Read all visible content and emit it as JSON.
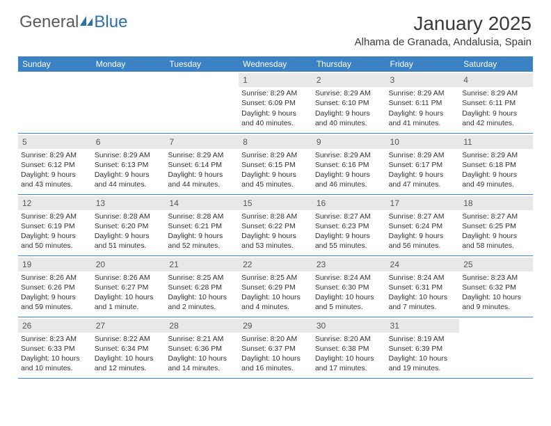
{
  "logo": {
    "word1": "General",
    "word2": "Blue",
    "icon_color": "#2b6fb0"
  },
  "title": "January 2025",
  "location": "Alhama de Granada, Andalusia, Spain",
  "day_headers": [
    "Sunday",
    "Monday",
    "Tuesday",
    "Wednesday",
    "Thursday",
    "Friday",
    "Saturday"
  ],
  "colors": {
    "header_bg": "#3b82c4",
    "header_text": "#ffffff",
    "daynum_bg": "#e8e8e8",
    "border": "#3b82c4",
    "text": "#333333",
    "title_text": "#3a3a3a"
  },
  "weeks": [
    [
      {
        "n": "",
        "sunrise": "",
        "sunset": "",
        "daylight": ""
      },
      {
        "n": "",
        "sunrise": "",
        "sunset": "",
        "daylight": ""
      },
      {
        "n": "",
        "sunrise": "",
        "sunset": "",
        "daylight": ""
      },
      {
        "n": "1",
        "sunrise": "Sunrise: 8:29 AM",
        "sunset": "Sunset: 6:09 PM",
        "daylight": "Daylight: 9 hours and 40 minutes."
      },
      {
        "n": "2",
        "sunrise": "Sunrise: 8:29 AM",
        "sunset": "Sunset: 6:10 PM",
        "daylight": "Daylight: 9 hours and 40 minutes."
      },
      {
        "n": "3",
        "sunrise": "Sunrise: 8:29 AM",
        "sunset": "Sunset: 6:11 PM",
        "daylight": "Daylight: 9 hours and 41 minutes."
      },
      {
        "n": "4",
        "sunrise": "Sunrise: 8:29 AM",
        "sunset": "Sunset: 6:11 PM",
        "daylight": "Daylight: 9 hours and 42 minutes."
      }
    ],
    [
      {
        "n": "5",
        "sunrise": "Sunrise: 8:29 AM",
        "sunset": "Sunset: 6:12 PM",
        "daylight": "Daylight: 9 hours and 43 minutes."
      },
      {
        "n": "6",
        "sunrise": "Sunrise: 8:29 AM",
        "sunset": "Sunset: 6:13 PM",
        "daylight": "Daylight: 9 hours and 44 minutes."
      },
      {
        "n": "7",
        "sunrise": "Sunrise: 8:29 AM",
        "sunset": "Sunset: 6:14 PM",
        "daylight": "Daylight: 9 hours and 44 minutes."
      },
      {
        "n": "8",
        "sunrise": "Sunrise: 8:29 AM",
        "sunset": "Sunset: 6:15 PM",
        "daylight": "Daylight: 9 hours and 45 minutes."
      },
      {
        "n": "9",
        "sunrise": "Sunrise: 8:29 AM",
        "sunset": "Sunset: 6:16 PM",
        "daylight": "Daylight: 9 hours and 46 minutes."
      },
      {
        "n": "10",
        "sunrise": "Sunrise: 8:29 AM",
        "sunset": "Sunset: 6:17 PM",
        "daylight": "Daylight: 9 hours and 47 minutes."
      },
      {
        "n": "11",
        "sunrise": "Sunrise: 8:29 AM",
        "sunset": "Sunset: 6:18 PM",
        "daylight": "Daylight: 9 hours and 49 minutes."
      }
    ],
    [
      {
        "n": "12",
        "sunrise": "Sunrise: 8:29 AM",
        "sunset": "Sunset: 6:19 PM",
        "daylight": "Daylight: 9 hours and 50 minutes."
      },
      {
        "n": "13",
        "sunrise": "Sunrise: 8:28 AM",
        "sunset": "Sunset: 6:20 PM",
        "daylight": "Daylight: 9 hours and 51 minutes."
      },
      {
        "n": "14",
        "sunrise": "Sunrise: 8:28 AM",
        "sunset": "Sunset: 6:21 PM",
        "daylight": "Daylight: 9 hours and 52 minutes."
      },
      {
        "n": "15",
        "sunrise": "Sunrise: 8:28 AM",
        "sunset": "Sunset: 6:22 PM",
        "daylight": "Daylight: 9 hours and 53 minutes."
      },
      {
        "n": "16",
        "sunrise": "Sunrise: 8:27 AM",
        "sunset": "Sunset: 6:23 PM",
        "daylight": "Daylight: 9 hours and 55 minutes."
      },
      {
        "n": "17",
        "sunrise": "Sunrise: 8:27 AM",
        "sunset": "Sunset: 6:24 PM",
        "daylight": "Daylight: 9 hours and 56 minutes."
      },
      {
        "n": "18",
        "sunrise": "Sunrise: 8:27 AM",
        "sunset": "Sunset: 6:25 PM",
        "daylight": "Daylight: 9 hours and 58 minutes."
      }
    ],
    [
      {
        "n": "19",
        "sunrise": "Sunrise: 8:26 AM",
        "sunset": "Sunset: 6:26 PM",
        "daylight": "Daylight: 9 hours and 59 minutes."
      },
      {
        "n": "20",
        "sunrise": "Sunrise: 8:26 AM",
        "sunset": "Sunset: 6:27 PM",
        "daylight": "Daylight: 10 hours and 1 minute."
      },
      {
        "n": "21",
        "sunrise": "Sunrise: 8:25 AM",
        "sunset": "Sunset: 6:28 PM",
        "daylight": "Daylight: 10 hours and 2 minutes."
      },
      {
        "n": "22",
        "sunrise": "Sunrise: 8:25 AM",
        "sunset": "Sunset: 6:29 PM",
        "daylight": "Daylight: 10 hours and 4 minutes."
      },
      {
        "n": "23",
        "sunrise": "Sunrise: 8:24 AM",
        "sunset": "Sunset: 6:30 PM",
        "daylight": "Daylight: 10 hours and 5 minutes."
      },
      {
        "n": "24",
        "sunrise": "Sunrise: 8:24 AM",
        "sunset": "Sunset: 6:31 PM",
        "daylight": "Daylight: 10 hours and 7 minutes."
      },
      {
        "n": "25",
        "sunrise": "Sunrise: 8:23 AM",
        "sunset": "Sunset: 6:32 PM",
        "daylight": "Daylight: 10 hours and 9 minutes."
      }
    ],
    [
      {
        "n": "26",
        "sunrise": "Sunrise: 8:23 AM",
        "sunset": "Sunset: 6:33 PM",
        "daylight": "Daylight: 10 hours and 10 minutes."
      },
      {
        "n": "27",
        "sunrise": "Sunrise: 8:22 AM",
        "sunset": "Sunset: 6:34 PM",
        "daylight": "Daylight: 10 hours and 12 minutes."
      },
      {
        "n": "28",
        "sunrise": "Sunrise: 8:21 AM",
        "sunset": "Sunset: 6:36 PM",
        "daylight": "Daylight: 10 hours and 14 minutes."
      },
      {
        "n": "29",
        "sunrise": "Sunrise: 8:20 AM",
        "sunset": "Sunset: 6:37 PM",
        "daylight": "Daylight: 10 hours and 16 minutes."
      },
      {
        "n": "30",
        "sunrise": "Sunrise: 8:20 AM",
        "sunset": "Sunset: 6:38 PM",
        "daylight": "Daylight: 10 hours and 17 minutes."
      },
      {
        "n": "31",
        "sunrise": "Sunrise: 8:19 AM",
        "sunset": "Sunset: 6:39 PM",
        "daylight": "Daylight: 10 hours and 19 minutes."
      },
      {
        "n": "",
        "sunrise": "",
        "sunset": "",
        "daylight": ""
      }
    ]
  ]
}
